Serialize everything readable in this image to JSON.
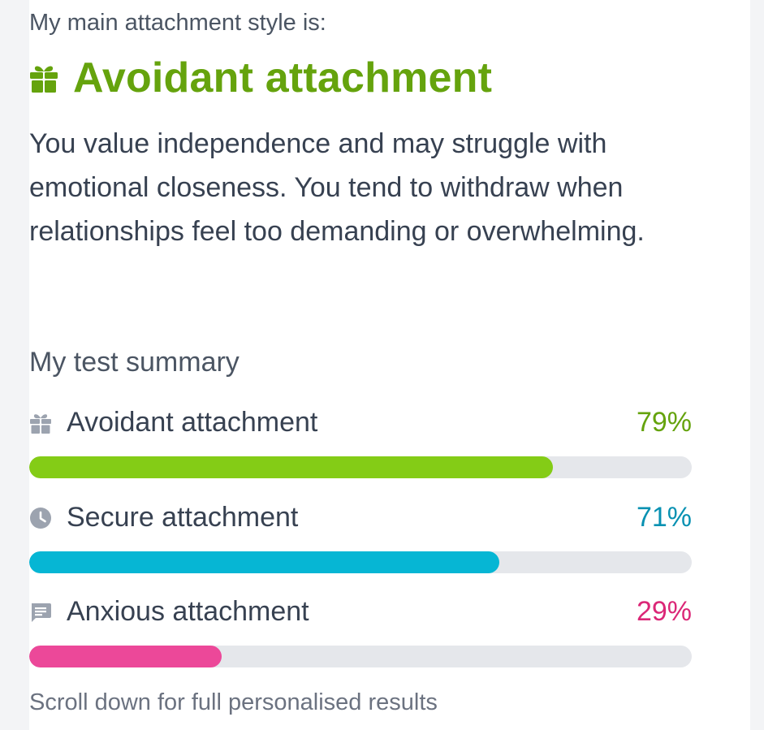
{
  "main": {
    "label": "My main attachment style is:",
    "title": "Avoidant attachment",
    "title_icon": "gift-icon",
    "title_color": "#65a30d",
    "description": "You value independence and may struggle with emotional closeness. You tend to withdraw when relationships feel too demanding or overwhelming."
  },
  "summary": {
    "label": "My test summary",
    "results": [
      {
        "name": "Avoidant attachment",
        "percent_label": "79%",
        "value": 79,
        "icon": "gift-icon",
        "color": "#84cc16",
        "text_color": "#65a30d",
        "track_color": "#e5e7eb"
      },
      {
        "name": "Secure attachment",
        "percent_label": "71%",
        "value": 71,
        "icon": "clock-icon",
        "color": "#06b6d4",
        "text_color": "#0891b2",
        "track_color": "#e5e7eb"
      },
      {
        "name": "Anxious attachment",
        "percent_label": "29%",
        "value": 29,
        "icon": "chat-icon",
        "color": "#ec4899",
        "text_color": "#db2777",
        "track_color": "#e5e7eb"
      }
    ]
  },
  "footer": {
    "scroll_hint": "Scroll down for full personalised results"
  }
}
